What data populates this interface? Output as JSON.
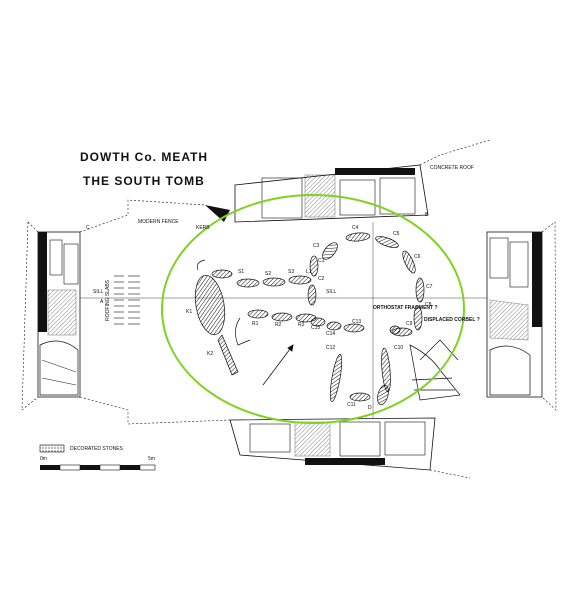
{
  "title": {
    "line1": "DOWTH    Co. MEATH",
    "line2": "THE SOUTH TOMB"
  },
  "annotations": {
    "concrete_roof": "CONCRETE ROOF",
    "modern_fence": "MODERN FENCE",
    "kerb": "KERB",
    "sill_left": "SILL",
    "sill_center": "SILL",
    "orthostat_fragment": "ORTHOSTAT FRAGMENT ?",
    "displaced_corbel": "DISPLACED CORBEL ?",
    "decorated_stones": "DECORATED STONES",
    "scale_start": "0m",
    "scale_end": "5m",
    "vertical_left": "ROOFING SLABS"
  },
  "stone_labels": {
    "k1": "K1",
    "k2": "K2",
    "s1": "S1",
    "s2": "S2",
    "s3": "S3",
    "l1": "L1",
    "r1": "R1",
    "r2": "R2",
    "r3": "R3",
    "c1": "C1",
    "c2": "C2",
    "c3": "C3",
    "c4": "C4",
    "c5": "C5",
    "c6": "C6",
    "c7": "C7",
    "c8": "C8",
    "c9": "C9",
    "c10": "C10",
    "c11": "C11",
    "c12": "C12",
    "c13": "C13",
    "c14": "C14",
    "c15": "C15",
    "d": "D",
    "a": "A",
    "b": "B",
    "c": "C"
  },
  "colors": {
    "ink": "#111111",
    "highlight": "#7ed321",
    "paper": "#ffffff"
  }
}
